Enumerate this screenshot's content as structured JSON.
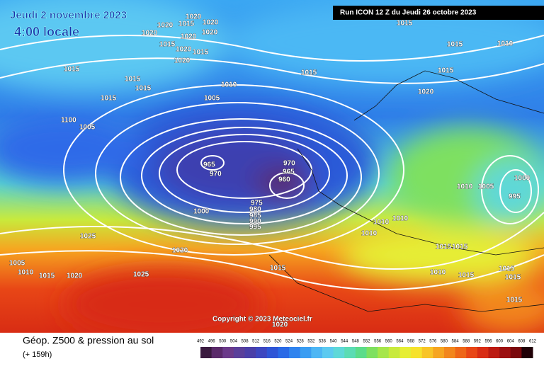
{
  "header": {
    "date": "Jeudi 2 novembre 2023",
    "time": "4:00 locale",
    "run": "Run ICON 12 Z du Jeudi 26 octobre 2023"
  },
  "map": {
    "pressure_labels": [
      "1020",
      "1020",
      "1020",
      "1020",
      "1015",
      "1020",
      "1020",
      "1015",
      "1020",
      "1015",
      "1020",
      "1015",
      "1015",
      "1015",
      "1015",
      "1010",
      "1005",
      "1100",
      "1005",
      "1015",
      "1015",
      "1010",
      "1015",
      "1015",
      "1020",
      "965",
      "970",
      "970",
      "965",
      "960",
      "975",
      "980",
      "985",
      "990",
      "995",
      "1000",
      "1010",
      "1005",
      "1000",
      "995",
      "1010",
      "1010",
      "1010",
      "1025",
      "1020",
      "1005",
      "1010",
      "1015",
      "1020",
      "1025",
      "1015",
      "1015",
      "1015",
      "1010",
      "1015",
      "1015",
      "1015",
      "1015",
      "1020"
    ],
    "copyright": "Copyright © 2023 Meteociel.fr"
  },
  "footer": {
    "title": "Géop. Z500 & pression au sol",
    "lead": "(+ 159h)"
  },
  "legend": {
    "ticks": [
      492,
      496,
      500,
      504,
      508,
      512,
      516,
      520,
      524,
      528,
      532,
      536,
      540,
      544,
      548,
      552,
      556,
      560,
      564,
      568,
      572,
      576,
      580,
      584,
      588,
      592,
      596,
      600,
      604,
      608,
      612
    ],
    "colors": [
      "#3a1a3f",
      "#5a2a6a",
      "#6b3a8a",
      "#5a3f9a",
      "#4a3fa8",
      "#3d47c0",
      "#2f55d6",
      "#2a6ae6",
      "#2f83ee",
      "#3a9df2",
      "#4db6f4",
      "#5ccaf0",
      "#5ed8d8",
      "#5bdcb4",
      "#5cdc8a",
      "#7ee060",
      "#a6e64a",
      "#c8ea3c",
      "#e6ee34",
      "#f6e22c",
      "#f8c426",
      "#f6a520",
      "#f2861c",
      "#ee6618",
      "#e84616",
      "#d82c14",
      "#bc1a12",
      "#9c0f10",
      "#7a080c",
      "#200006"
    ]
  }
}
